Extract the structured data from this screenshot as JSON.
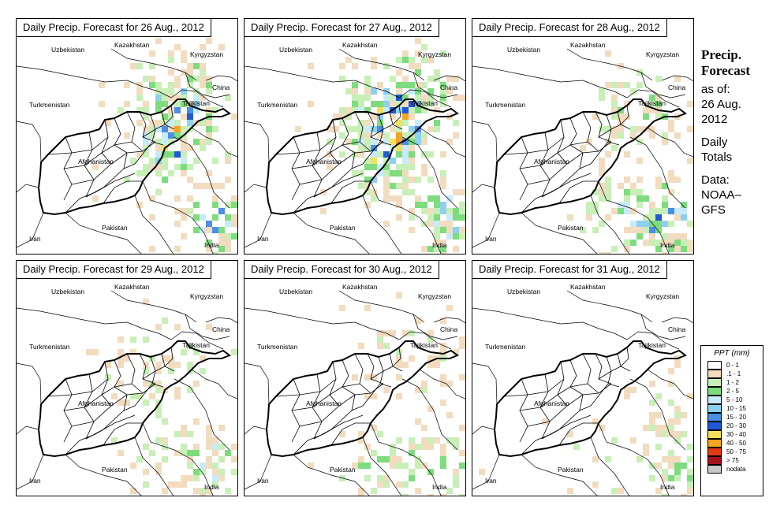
{
  "panels": [
    {
      "title": "Daily Precip. Forecast for  26 Aug., 2012",
      "seed": 11,
      "cells": [
        [
          0.72,
          0.35,
          40,
          0.7
        ],
        [
          0.66,
          0.58,
          30,
          0.55
        ],
        [
          0.9,
          0.85,
          28,
          0.7
        ]
      ]
    },
    {
      "title": "Daily Precip. Forecast for  27 Aug., 2012",
      "seed": 23,
      "cells": [
        [
          0.68,
          0.35,
          45,
          0.75
        ],
        [
          0.62,
          0.6,
          30,
          0.6
        ],
        [
          0.88,
          0.85,
          30,
          0.75
        ]
      ]
    },
    {
      "title": "Daily Precip. Forecast for  28 Aug., 2012",
      "seed": 37,
      "cells": [
        [
          0.72,
          0.4,
          35,
          0.5
        ],
        [
          0.85,
          0.85,
          35,
          0.7
        ],
        [
          0.6,
          0.8,
          30,
          0.3
        ]
      ]
    },
    {
      "title": "Daily Precip. Forecast for  29 Aug., 2012",
      "seed": 41,
      "cells": [
        [
          0.65,
          0.45,
          40,
          0.35
        ],
        [
          0.88,
          0.85,
          32,
          0.5
        ],
        [
          0.6,
          0.8,
          30,
          0.25
        ]
      ]
    },
    {
      "title": "Daily Precip. Forecast for  30 Aug., 2012",
      "seed": 53,
      "cells": [
        [
          0.75,
          0.4,
          40,
          0.3
        ],
        [
          0.6,
          0.85,
          30,
          0.45
        ],
        [
          0.9,
          0.85,
          30,
          0.45
        ]
      ]
    },
    {
      "title": "Daily Precip. Forecast for  31 Aug., 2012",
      "seed": 67,
      "cells": [
        [
          0.85,
          0.6,
          30,
          0.25
        ],
        [
          0.9,
          0.85,
          30,
          0.4
        ],
        [
          0.6,
          0.8,
          30,
          0.15
        ]
      ]
    }
  ],
  "map_labels": {
    "uzbekistan": "Uzbekistan",
    "kazakhstan": "Kazakhstan",
    "kyrgyzstan": "Kyrgyzstan",
    "china": "China",
    "turkmenistan": "Turkmenistan",
    "tajikistan": "Tajikistan",
    "afghanistan": "Afghanistan",
    "iran": "Iran",
    "pakistan": "Pakistan",
    "india": "India"
  },
  "side": {
    "title1": "Precip.",
    "title2": "Forecast",
    "asof1": "as of:",
    "asof2": "26 Aug.",
    "asof3": "2012",
    "daily1": "Daily",
    "daily2": "Totals",
    "data1": "Data:",
    "data2": "NOAA–",
    "data3": "GFS"
  },
  "legend": {
    "title": "PPT (mm)",
    "items": [
      {
        "label": "0 - 1",
        "color": "#ffffff"
      },
      {
        "label": ".1 - 1",
        "color": "#f2dcc0"
      },
      {
        "label": "1 - 2",
        "color": "#c8efb8"
      },
      {
        "label": "2 - 5",
        "color": "#7edc7e"
      },
      {
        "label": "5 - 10",
        "color": "#c8ecf7"
      },
      {
        "label": "10 - 15",
        "color": "#8ed0ef"
      },
      {
        "label": "15 - 20",
        "color": "#4a8ee6"
      },
      {
        "label": "20 - 30",
        "color": "#1e5ad6"
      },
      {
        "label": "30 - 40",
        "color": "#f4e05a"
      },
      {
        "label": "40 - 50",
        "color": "#f5a320"
      },
      {
        "label": "50 - 75",
        "color": "#e23a14"
      },
      {
        "label": "> 75",
        "color": "#a3141e"
      },
      {
        "label": "nodata",
        "color": "#c8c8c8"
      }
    ]
  }
}
